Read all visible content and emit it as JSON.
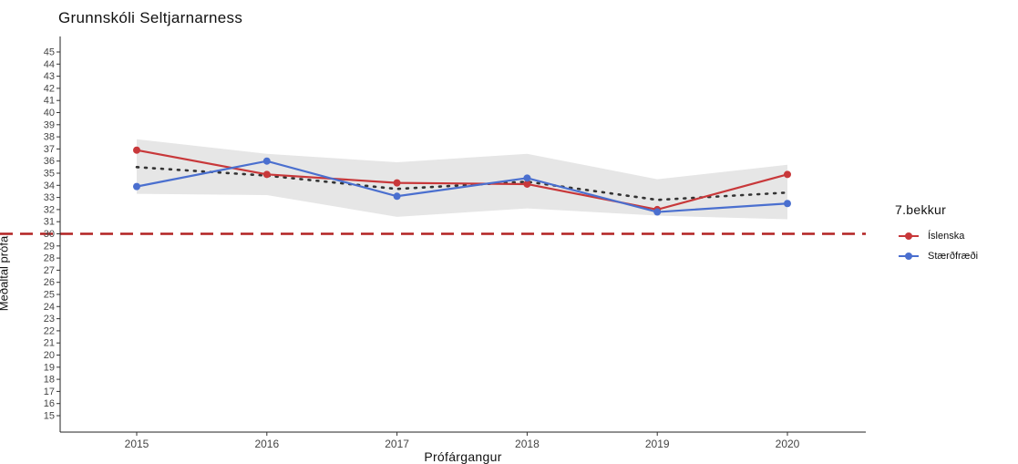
{
  "chart_data": {
    "type": "line",
    "title": "Grunnskóli Seltjarnarness",
    "xlabel": "Prófárgangur",
    "ylabel": "Meðaltal prófa",
    "x": [
      2015,
      2016,
      2017,
      2018,
      2019,
      2020
    ],
    "ylim": [
      14,
      46.5
    ],
    "yticks": [
      15,
      16,
      17,
      18,
      19,
      20,
      21,
      22,
      23,
      24,
      25,
      26,
      27,
      28,
      29,
      30,
      31,
      32,
      33,
      34,
      35,
      36,
      37,
      38,
      39,
      40,
      41,
      42,
      43,
      44,
      45
    ],
    "grid": false,
    "reference_line": {
      "y": 30,
      "color": "#b22222",
      "style": "dashed"
    },
    "trend": {
      "style": "dotted",
      "color": "#333333",
      "values": [
        35.5,
        34.8,
        33.7,
        34.3,
        32.8,
        33.4
      ]
    },
    "band": {
      "color": "#e6e6e6",
      "lower": [
        33.3,
        33.2,
        31.4,
        32.1,
        31.5,
        31.2
      ],
      "upper": [
        37.8,
        36.6,
        35.9,
        36.6,
        34.5,
        35.7
      ]
    },
    "legend": {
      "title": "7.bekkur",
      "position": "right"
    },
    "series": [
      {
        "name": "Íslenska",
        "color": "#c8383a",
        "values": [
          36.9,
          34.9,
          34.2,
          34.1,
          32.0,
          34.9
        ]
      },
      {
        "name": "Stærðfræði",
        "color": "#4a6fcf",
        "values": [
          33.9,
          36.0,
          33.1,
          34.6,
          31.8,
          32.5
        ]
      }
    ]
  }
}
